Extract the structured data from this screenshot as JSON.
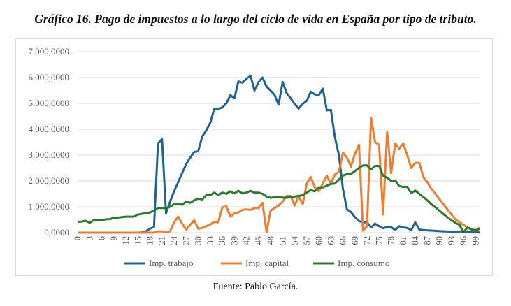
{
  "title": "Gráfico  16. Pago de impuestos a lo largo del ciclo de vida en España por tipo de tributo.",
  "source": "Fuente: Pablo García.",
  "chart_data": {
    "type": "line",
    "title": "Gráfico  16. Pago de impuestos a lo largo del ciclo de vida en España por tipo de tributo.",
    "xlabel": "",
    "ylabel": "",
    "ylim": [
      0,
      7000000
    ],
    "xlim": [
      0,
      100
    ],
    "grid": true,
    "legend": "bottom",
    "yticks": [
      0,
      1000000,
      2000000,
      3000000,
      4000000,
      5000000,
      6000000,
      7000000
    ],
    "ytick_labels": [
      "0,0000",
      "1.000,0000",
      "2.000,0000",
      "3.000,0000",
      "4.000,0000",
      "5.000,0000",
      "6.000,0000",
      "7.000,0000"
    ],
    "xtick_labels": [
      "0",
      "3",
      "6",
      "9",
      "12",
      "15",
      "18",
      "21",
      "24",
      "27",
      "30",
      "33",
      "36",
      "39",
      "42",
      "45",
      "48",
      "51",
      "54",
      "57",
      "60",
      "63",
      "66",
      "69",
      "72",
      "75",
      "78",
      "81",
      "84",
      "87",
      "90",
      "93",
      "96",
      "99"
    ],
    "series": [
      {
        "name": "Imp. trabajo",
        "color": "#1f6391",
        "values": [
          0,
          0,
          0,
          0,
          0,
          0,
          0,
          0,
          0,
          0,
          0,
          0,
          0,
          0,
          0,
          0,
          10000,
          50000,
          150000,
          220000,
          3450000,
          3620000,
          750000,
          1200000,
          1600000,
          1950000,
          2300000,
          2650000,
          2900000,
          3120000,
          3150000,
          3720000,
          3950000,
          4250000,
          4800000,
          4780000,
          4850000,
          5000000,
          5320000,
          5200000,
          5850000,
          5800000,
          5950000,
          6070000,
          5500000,
          5820000,
          6000000,
          5650000,
          5500000,
          5330000,
          4950000,
          5830000,
          5400000,
          5200000,
          4980000,
          4800000,
          4980000,
          5100000,
          5450000,
          5350000,
          5320000,
          5570000,
          4730000,
          4750000,
          3700000,
          3000000,
          1700000,
          900000,
          800000,
          600000,
          450000,
          400000,
          400000,
          200000,
          350000,
          250000,
          170000,
          220000,
          220000,
          100000,
          250000,
          200000,
          180000,
          100000,
          400000,
          120000,
          100000,
          90000,
          80000,
          70000,
          60000,
          50000,
          45000,
          40000,
          30000,
          25000,
          20000,
          15000,
          12000,
          10000,
          10000
        ]
      },
      {
        "name": "Imp. capital",
        "color": "#ed7d31",
        "values": [
          0,
          0,
          0,
          0,
          0,
          0,
          0,
          0,
          0,
          0,
          0,
          0,
          0,
          0,
          0,
          0,
          0,
          0,
          0,
          0,
          50000,
          50000,
          0,
          50000,
          400000,
          620000,
          350000,
          120000,
          300000,
          480000,
          150000,
          180000,
          250000,
          320000,
          420000,
          400000,
          980000,
          1020000,
          620000,
          750000,
          780000,
          880000,
          900000,
          880000,
          950000,
          950000,
          1150000,
          20000,
          850000,
          950000,
          1050000,
          1200000,
          1420000,
          1420000,
          1050000,
          1420000,
          1100000,
          1900000,
          2150000,
          1750000,
          1600000,
          1900000,
          2200000,
          1900000,
          2250000,
          2350000,
          3100000,
          2900000,
          2550000,
          3050000,
          3400000,
          80000,
          250000,
          4450000,
          3500000,
          3400000,
          700000,
          3900000,
          2300000,
          3450000,
          3250000,
          3450000,
          3000000,
          2500000,
          2700000,
          2700000,
          2150000,
          1950000,
          1700000,
          1500000,
          1300000,
          1100000,
          900000,
          700000,
          520000,
          400000,
          300000,
          200000,
          150000,
          100000,
          200000
        ]
      },
      {
        "name": "Imp. consumo",
        "color": "#2a7a2e",
        "values": [
          420000,
          430000,
          460000,
          380000,
          480000,
          500000,
          480000,
          520000,
          520000,
          580000,
          580000,
          600000,
          620000,
          620000,
          620000,
          700000,
          730000,
          750000,
          780000,
          850000,
          950000,
          950000,
          950000,
          1000000,
          1100000,
          1120000,
          1080000,
          1200000,
          1150000,
          1250000,
          1320000,
          1280000,
          1450000,
          1450000,
          1550000,
          1450000,
          1550000,
          1500000,
          1600000,
          1520000,
          1620000,
          1520000,
          1550000,
          1620000,
          1550000,
          1550000,
          1500000,
          1400000,
          1350000,
          1370000,
          1370000,
          1360000,
          1350000,
          1380000,
          1400000,
          1420000,
          1450000,
          1550000,
          1650000,
          1600000,
          1750000,
          1750000,
          1820000,
          1880000,
          1900000,
          2050000,
          2200000,
          2270000,
          2270000,
          2380000,
          2500000,
          2600000,
          2600000,
          2450000,
          2580000,
          2580000,
          2200000,
          2120000,
          2000000,
          2020000,
          1800000,
          1770000,
          1770000,
          1530000,
          1630000,
          1500000,
          1380000,
          1250000,
          1100000,
          980000,
          850000,
          720000,
          600000,
          480000,
          380000,
          300000,
          20000,
          200000,
          120000,
          80000,
          150000
        ]
      }
    ]
  }
}
